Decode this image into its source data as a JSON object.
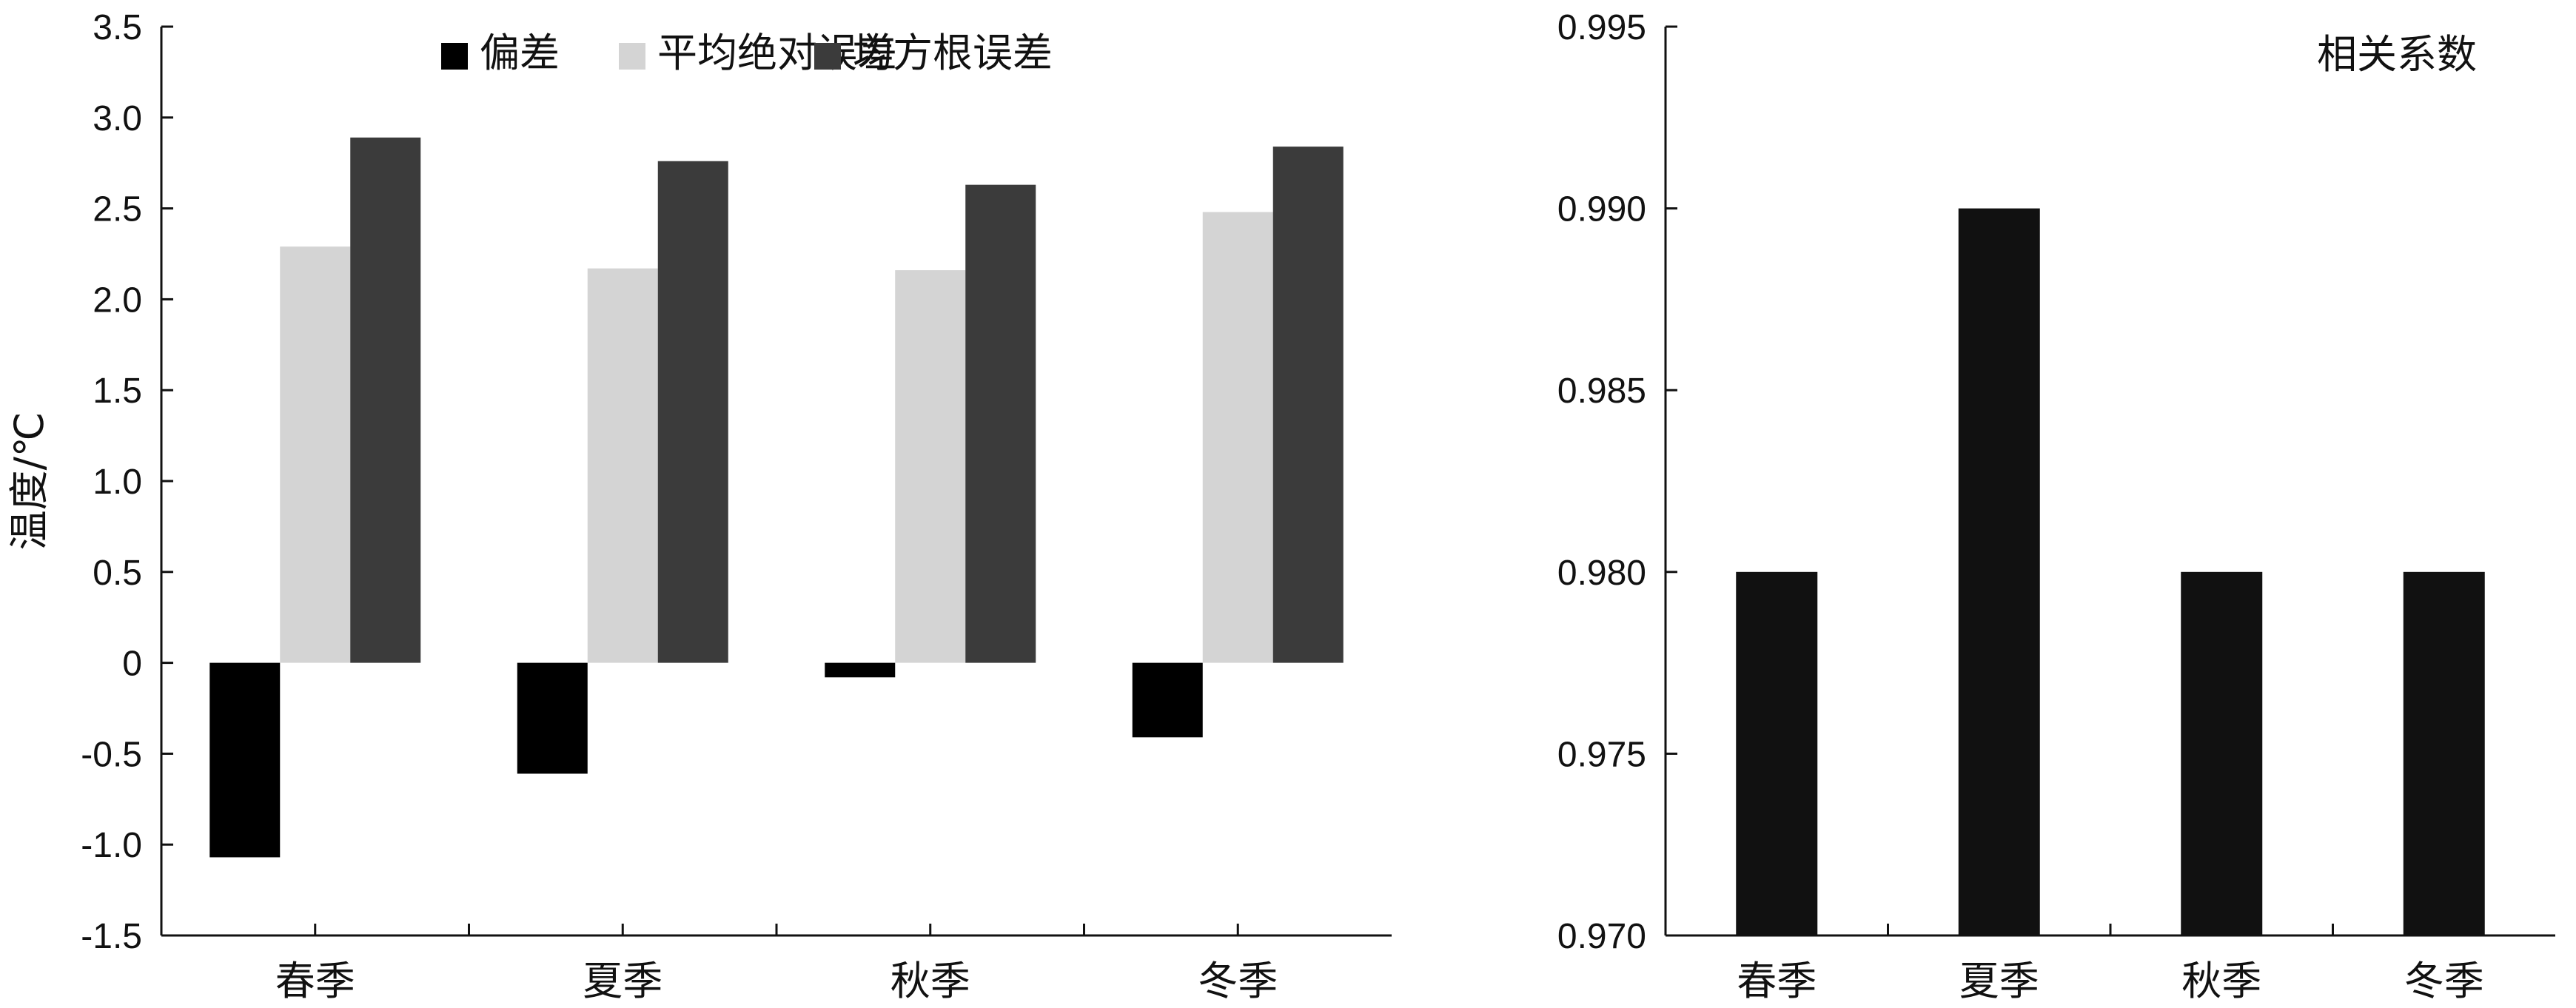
{
  "chart_data": [
    {
      "type": "bar",
      "categories": [
        "春季",
        "夏季",
        "秋季",
        "冬季"
      ],
      "ylabel": "温度/℃",
      "ylim": [
        -1.5,
        3.5
      ],
      "yticks": [
        -1.5,
        -1.0,
        -0.5,
        0,
        0.5,
        1.0,
        1.5,
        2.0,
        2.5,
        3.0,
        3.5
      ],
      "ytick_labels": [
        "-1.5",
        "-1.0",
        "-0.5",
        "0",
        "0.5",
        "1.0",
        "1.5",
        "2.0",
        "2.5",
        "3.0",
        "3.5"
      ],
      "legend_position": "top",
      "grid": false,
      "series": [
        {
          "name": "偏差",
          "color": "#000000",
          "values": [
            -1.07,
            -0.61,
            -0.08,
            -0.41
          ]
        },
        {
          "name": "平均绝对误差",
          "color": "#d4d4d4",
          "values": [
            2.29,
            2.17,
            2.16,
            2.48
          ]
        },
        {
          "name": "均方根误差",
          "color": "#3b3b3b",
          "values": [
            2.89,
            2.76,
            2.63,
            2.84
          ]
        }
      ]
    },
    {
      "type": "bar",
      "categories": [
        "春季",
        "夏季",
        "秋季",
        "冬季"
      ],
      "ylim": [
        0.97,
        0.995
      ],
      "yticks": [
        0.97,
        0.975,
        0.98,
        0.985,
        0.99,
        0.995
      ],
      "ytick_labels": [
        "0.970",
        "0.975",
        "0.980",
        "0.985",
        "0.990",
        "0.995"
      ],
      "legend_position": "top-right",
      "grid": false,
      "series": [
        {
          "name": "相关系数",
          "color": "#111111",
          "values": [
            0.98,
            0.99,
            0.98,
            0.98
          ]
        }
      ]
    }
  ]
}
